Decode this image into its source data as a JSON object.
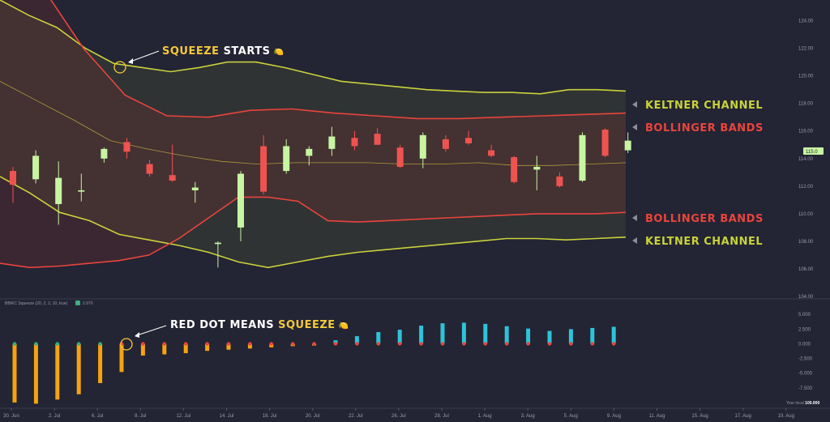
{
  "colors": {
    "background": "#232434",
    "keltner": "#c9d23a",
    "bollinger": "#e8453c",
    "ma": "#c9b43a",
    "bull": "#c7f5a2",
    "bear": "#ef5350",
    "hist_neg": "#f5a30f",
    "hist_pos": "#2ec3d9",
    "dot_red": "#e8453c",
    "dot_green": "#2fb07a",
    "white": "#ffffff",
    "accent_text": "#f4c93b"
  },
  "annotations": {
    "squeeze_starts": {
      "word": "SQUEEZE",
      "rest": " STARTS",
      "emoji": "🍋"
    },
    "red_dot": {
      "lead": "RED DOT MEANS ",
      "word": "SQUEEZE",
      "emoji": "🍋"
    },
    "keltner_upper": "KELTNER CHANNEL",
    "bollinger_upper": "BOLLINGER BANDS",
    "bollinger_lower": "BOLLINGER BANDS",
    "keltner_lower": "KELTNER CHANNEL"
  },
  "price_badge": "115.0",
  "indicator_label": {
    "text": "BB/KC Squeeze (20, 2, 2, 10, true)",
    "badge": "0",
    "value": "2.970"
  },
  "bottom_right_label": "Your local ",
  "bottom_right_bold": "100.000",
  "chart_data": [
    {
      "type": "candlestick",
      "title": "",
      "ylim": [
        104.0,
        125.5
      ],
      "y_ticks": [
        "104.00",
        "106.00",
        "108.00",
        "110.00",
        "112.00",
        "114.00",
        "116.00",
        "118.00",
        "120.00",
        "122.00",
        "124.00"
      ],
      "x_ticks": [
        "30. Jun",
        "2. Jul",
        "6. Jul",
        "8. Jul",
        "12. Jul",
        "14. Jul",
        "18. Jul",
        "20. Jul",
        "22. Jul",
        "26. Jul",
        "28. Jul",
        "1. Aug",
        "3. Aug",
        "5. Aug",
        "9. Aug",
        "11. Aug",
        "15. Aug",
        "17. Aug",
        "19. Aug"
      ],
      "candles": [
        {
          "o": 113.1,
          "h": 113.4,
          "l": 110.8,
          "c": 112.1
        },
        {
          "o": 112.5,
          "h": 114.6,
          "l": 112.2,
          "c": 114.2
        },
        {
          "o": 110.7,
          "h": 113.8,
          "l": 109.2,
          "c": 112.6
        },
        {
          "o": 111.6,
          "h": 112.9,
          "l": 110.9,
          "c": 111.7
        },
        {
          "o": 114.0,
          "h": 114.8,
          "l": 113.7,
          "c": 114.7
        },
        {
          "o": 115.2,
          "h": 115.5,
          "l": 114.0,
          "c": 114.5
        },
        {
          "o": 113.6,
          "h": 113.9,
          "l": 112.7,
          "c": 112.9
        },
        {
          "o": 112.8,
          "h": 115.0,
          "l": 112.3,
          "c": 112.4
        },
        {
          "o": 111.7,
          "h": 112.3,
          "l": 110.8,
          "c": 111.9
        },
        {
          "o": 107.8,
          "h": 108.0,
          "l": 106.1,
          "c": 107.9
        },
        {
          "o": 109.0,
          "h": 113.1,
          "l": 108.0,
          "c": 112.9
        },
        {
          "o": 114.9,
          "h": 115.7,
          "l": 111.4,
          "c": 111.6
        },
        {
          "o": 113.1,
          "h": 115.4,
          "l": 112.9,
          "c": 114.9
        },
        {
          "o": 114.2,
          "h": 114.9,
          "l": 113.5,
          "c": 114.7
        },
        {
          "o": 114.7,
          "h": 116.3,
          "l": 114.2,
          "c": 115.6
        },
        {
          "o": 115.5,
          "h": 116.0,
          "l": 114.6,
          "c": 114.9
        },
        {
          "o": 115.8,
          "h": 116.2,
          "l": 115.0,
          "c": 115.0
        },
        {
          "o": 114.8,
          "h": 115.0,
          "l": 113.3,
          "c": 113.4
        },
        {
          "o": 114.0,
          "h": 115.9,
          "l": 113.3,
          "c": 115.7
        },
        {
          "o": 115.4,
          "h": 115.7,
          "l": 114.5,
          "c": 114.7
        },
        {
          "o": 115.5,
          "h": 116.0,
          "l": 115.0,
          "c": 115.1
        },
        {
          "o": 114.6,
          "h": 115.0,
          "l": 114.1,
          "c": 114.2
        },
        {
          "o": 114.1,
          "h": 114.2,
          "l": 112.2,
          "c": 112.3
        },
        {
          "o": 113.2,
          "h": 114.2,
          "l": 111.7,
          "c": 113.4
        },
        {
          "o": 112.7,
          "h": 113.0,
          "l": 111.9,
          "c": 112.0
        },
        {
          "o": 112.4,
          "h": 115.9,
          "l": 112.3,
          "c": 115.7
        },
        {
          "o": 116.1,
          "h": 116.2,
          "l": 114.1,
          "c": 114.2
        },
        {
          "o": 114.6,
          "h": 115.9,
          "l": 114.4,
          "c": 115.3
        }
      ],
      "keltner_upper": [
        125.5,
        124.4,
        123.5,
        122.0,
        120.9,
        120.6,
        120.3,
        120.6,
        121.0,
        121.0,
        120.6,
        120.1,
        119.6,
        119.4,
        119.2,
        119.0,
        118.9,
        118.8,
        118.8,
        118.7,
        119.0,
        119.0,
        118.9
      ],
      "bollinger_upper": [
        131.0,
        126.5,
        122.0,
        118.6,
        117.1,
        117.0,
        117.5,
        117.6,
        117.3,
        117.1,
        116.9,
        116.9,
        117.0,
        117.1,
        117.2,
        117.3
      ],
      "moving_average": [
        119.6,
        118.2,
        116.8,
        115.3,
        114.7,
        114.2,
        113.8,
        113.6,
        113.7,
        113.7,
        113.7,
        113.6,
        113.6,
        113.7,
        113.5,
        113.5,
        113.6,
        113.7
      ],
      "bollinger_lower": [
        106.4,
        106.1,
        106.2,
        106.4,
        106.6,
        107.0,
        108.2,
        109.7,
        111.2,
        111.2,
        110.9,
        109.5,
        109.4,
        109.5,
        109.6,
        109.7,
        109.8,
        109.9,
        110.0,
        110.0,
        110.0,
        110.1
      ],
      "keltner_lower": [
        112.7,
        111.5,
        110.1,
        109.5,
        108.5,
        108.1,
        107.7,
        107.2,
        106.5,
        106.1,
        106.5,
        106.9,
        107.2,
        107.4,
        107.6,
        107.8,
        108.0,
        108.2,
        108.2,
        108.1,
        108.2,
        108.3
      ]
    },
    {
      "type": "bar",
      "title": "",
      "ylim": [
        -10.7,
        6.0
      ],
      "y_ticks": [
        "5.000",
        "2.500",
        "0.000",
        "-2.500",
        "-5.000",
        "-7.500"
      ],
      "values": [
        -10.0,
        -10.2,
        -9.5,
        -8.6,
        -6.7,
        -4.8,
        -2.0,
        -1.8,
        -1.6,
        -1.2,
        -1.0,
        -0.8,
        -0.6,
        -0.4,
        -0.3,
        0.6,
        1.3,
        2.0,
        2.4,
        3.1,
        3.5,
        3.6,
        3.4,
        3.0,
        2.6,
        2.2,
        2.5,
        2.7,
        2.9
      ],
      "squeeze_dots": [
        "g",
        "g",
        "g",
        "g",
        "g",
        "r",
        "r",
        "r",
        "r",
        "r",
        "r",
        "r",
        "r",
        "r",
        "r",
        "r",
        "r",
        "r",
        "r",
        "r",
        "r",
        "r",
        "r",
        "r",
        "r",
        "r",
        "r",
        "r",
        "r"
      ]
    }
  ]
}
